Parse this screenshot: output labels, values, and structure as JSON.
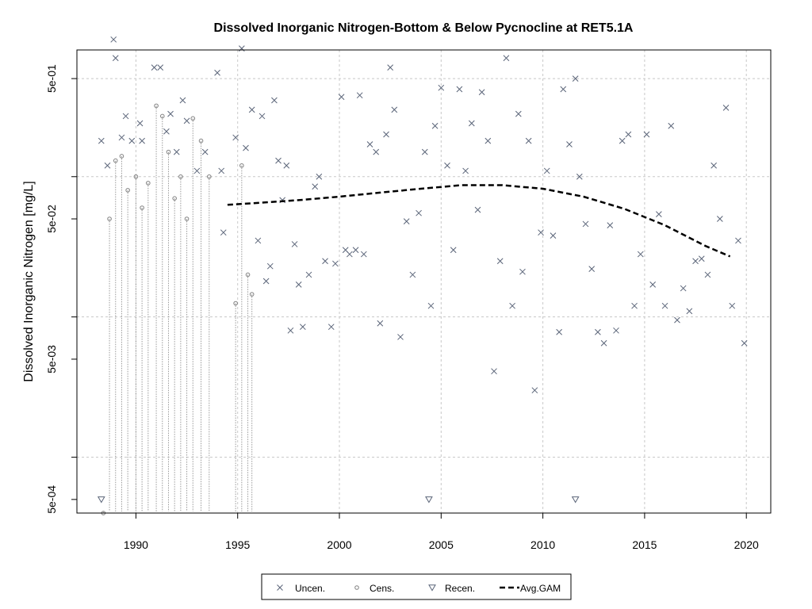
{
  "chart_data": {
    "type": "scatter",
    "title": "Dissolved Inorganic Nitrogen-Bottom & Below Pycnocline at RET5.1A",
    "xlabel": "",
    "ylabel": "Dissolved Inorganic Nitrogen [mg/L]",
    "xlim": [
      1987.1,
      2021.2
    ],
    "ylim": [
      0.0004,
      0.8
    ],
    "y_scale": "log",
    "grid": true,
    "x_ticks": [
      1990,
      1995,
      2000,
      2005,
      2010,
      2015,
      2020
    ],
    "x_tick_labels": [
      "1990",
      "1995",
      "2000",
      "2005",
      "2010",
      "2015",
      "2020"
    ],
    "y_ticks": [
      0.0005,
      0.005,
      0.05,
      0.5
    ],
    "y_tick_labels": [
      "5e-04",
      "5e-03",
      "5e-02",
      "5e-01"
    ],
    "y_gridlines": [
      0.001,
      0.01,
      0.1,
      0.5
    ],
    "legend_position": "bottom",
    "legend": [
      {
        "label": "Uncen.",
        "symbol": "x"
      },
      {
        "label": "Cens.",
        "symbol": "circle"
      },
      {
        "label": "Recen.",
        "symbol": "triangle-down"
      },
      {
        "label": "Avg.GAM",
        "symbol": "dashed-line"
      }
    ],
    "colors": {
      "points": "#5a6478",
      "censored": "#808080",
      "gam": "#000000",
      "grid": "#c8c8c8"
    },
    "series": [
      {
        "name": "Uncen.",
        "marker": "x",
        "points": [
          [
            1988.3,
            0.18
          ],
          [
            1988.6,
            0.12
          ],
          [
            1988.9,
            0.95
          ],
          [
            1989.0,
            0.7
          ],
          [
            1989.3,
            0.19
          ],
          [
            1989.5,
            0.27
          ],
          [
            1989.8,
            0.18
          ],
          [
            1990.2,
            0.24
          ],
          [
            1990.3,
            0.18
          ],
          [
            1990.9,
            0.6
          ],
          [
            1991.2,
            0.6
          ],
          [
            1991.5,
            0.21
          ],
          [
            1991.7,
            0.28
          ],
          [
            1992.0,
            0.15
          ],
          [
            1992.3,
            0.35
          ],
          [
            1992.5,
            0.25
          ],
          [
            1993.0,
            0.11
          ],
          [
            1993.4,
            0.15
          ],
          [
            1994.0,
            0.55
          ],
          [
            1994.2,
            0.11
          ],
          [
            1994.3,
            0.04
          ],
          [
            1994.9,
            0.19
          ],
          [
            1995.2,
            0.82
          ],
          [
            1995.4,
            0.16
          ],
          [
            1995.7,
            0.3
          ],
          [
            1996.0,
            0.035
          ],
          [
            1996.2,
            0.27
          ],
          [
            1996.4,
            0.018
          ],
          [
            1996.6,
            0.023
          ],
          [
            1996.8,
            0.35
          ],
          [
            1997.0,
            0.13
          ],
          [
            1997.2,
            0.068
          ],
          [
            1997.4,
            0.12
          ],
          [
            1997.6,
            0.008
          ],
          [
            1997.8,
            0.033
          ],
          [
            1998.0,
            0.017
          ],
          [
            1998.2,
            0.0085
          ],
          [
            1998.5,
            0.02
          ],
          [
            1998.8,
            0.085
          ],
          [
            1999.0,
            0.1
          ],
          [
            1999.3,
            0.025
          ],
          [
            1999.6,
            0.0085
          ],
          [
            1999.8,
            0.024
          ],
          [
            2000.1,
            0.37
          ],
          [
            2000.3,
            0.03
          ],
          [
            2000.5,
            0.028
          ],
          [
            2000.8,
            0.03
          ],
          [
            2001.0,
            0.38
          ],
          [
            2001.2,
            0.028
          ],
          [
            2001.5,
            0.17
          ],
          [
            2001.8,
            0.15
          ],
          [
            2002.0,
            0.009
          ],
          [
            2002.3,
            0.2
          ],
          [
            2002.5,
            0.6
          ],
          [
            2002.7,
            0.3
          ],
          [
            2003.0,
            0.0072
          ],
          [
            2003.3,
            0.048
          ],
          [
            2003.6,
            0.02
          ],
          [
            2003.9,
            0.055
          ],
          [
            2004.2,
            0.15
          ],
          [
            2004.5,
            0.012
          ],
          [
            2004.7,
            0.23
          ],
          [
            2005.0,
            0.43
          ],
          [
            2005.3,
            0.12
          ],
          [
            2005.6,
            0.03
          ],
          [
            2005.9,
            0.42
          ],
          [
            2006.2,
            0.11
          ],
          [
            2006.5,
            0.24
          ],
          [
            2006.8,
            0.058
          ],
          [
            2007.0,
            0.4
          ],
          [
            2007.3,
            0.18
          ],
          [
            2007.6,
            0.0041
          ],
          [
            2007.9,
            0.025
          ],
          [
            2008.2,
            0.7
          ],
          [
            2008.5,
            0.012
          ],
          [
            2008.8,
            0.28
          ],
          [
            2009.0,
            0.021
          ],
          [
            2009.3,
            0.18
          ],
          [
            2009.6,
            0.003
          ],
          [
            2009.9,
            0.04
          ],
          [
            2010.2,
            0.11
          ],
          [
            2010.5,
            0.038
          ],
          [
            2010.8,
            0.0078
          ],
          [
            2011.0,
            0.42
          ],
          [
            2011.3,
            0.17
          ],
          [
            2011.6,
            0.5
          ],
          [
            2011.8,
            0.1
          ],
          [
            2012.1,
            0.046
          ],
          [
            2012.4,
            0.022
          ],
          [
            2012.7,
            0.0078
          ],
          [
            2013.0,
            0.0065
          ],
          [
            2013.3,
            0.045
          ],
          [
            2013.6,
            0.008
          ],
          [
            2013.9,
            0.18
          ],
          [
            2014.2,
            0.2
          ],
          [
            2014.5,
            0.012
          ],
          [
            2014.8,
            0.028
          ],
          [
            2015.1,
            0.2
          ],
          [
            2015.4,
            0.017
          ],
          [
            2015.7,
            0.054
          ],
          [
            2016.0,
            0.012
          ],
          [
            2016.3,
            0.23
          ],
          [
            2016.6,
            0.0095
          ],
          [
            2016.9,
            0.016
          ],
          [
            2017.2,
            0.011
          ],
          [
            2017.5,
            0.025
          ],
          [
            2017.8,
            0.026
          ],
          [
            2018.1,
            0.02
          ],
          [
            2018.4,
            0.12
          ],
          [
            2018.7,
            0.05
          ],
          [
            2019.0,
            0.31
          ],
          [
            2019.3,
            0.012
          ],
          [
            2019.6,
            0.035
          ],
          [
            2019.9,
            0.0065
          ]
        ]
      },
      {
        "name": "Cens.",
        "marker": "circle",
        "points": [
          [
            1988.4,
            0.0004
          ],
          [
            1988.7,
            0.05
          ],
          [
            1989.0,
            0.13
          ],
          [
            1989.3,
            0.14
          ],
          [
            1989.6,
            0.08
          ],
          [
            1990.0,
            0.1
          ],
          [
            1990.3,
            0.06
          ],
          [
            1990.6,
            0.09
          ],
          [
            1991.0,
            0.32
          ],
          [
            1991.3,
            0.27
          ],
          [
            1991.6,
            0.15
          ],
          [
            1991.9,
            0.07
          ],
          [
            1992.2,
            0.1
          ],
          [
            1992.5,
            0.05
          ],
          [
            1992.8,
            0.26
          ],
          [
            1993.2,
            0.18
          ],
          [
            1993.6,
            0.1
          ],
          [
            1994.9,
            0.0125
          ],
          [
            1995.2,
            0.12
          ],
          [
            1995.5,
            0.02
          ],
          [
            1995.7,
            0.0145
          ]
        ]
      },
      {
        "name": "Recen.",
        "marker": "triangle-down",
        "points": [
          [
            1988.3,
            0.0005
          ],
          [
            2004.4,
            0.0005
          ],
          [
            2011.6,
            0.0005
          ]
        ]
      },
      {
        "name": "Avg.GAM",
        "marker": "dashed-line",
        "points": [
          [
            1994.5,
            0.063
          ],
          [
            1996.0,
            0.065
          ],
          [
            1998.0,
            0.068
          ],
          [
            2000.0,
            0.072
          ],
          [
            2002.0,
            0.077
          ],
          [
            2004.0,
            0.082
          ],
          [
            2006.0,
            0.087
          ],
          [
            2008.0,
            0.087
          ],
          [
            2010.0,
            0.082
          ],
          [
            2012.0,
            0.072
          ],
          [
            2014.0,
            0.059
          ],
          [
            2016.0,
            0.045
          ],
          [
            2018.0,
            0.032
          ],
          [
            2019.2,
            0.027
          ]
        ]
      }
    ]
  }
}
